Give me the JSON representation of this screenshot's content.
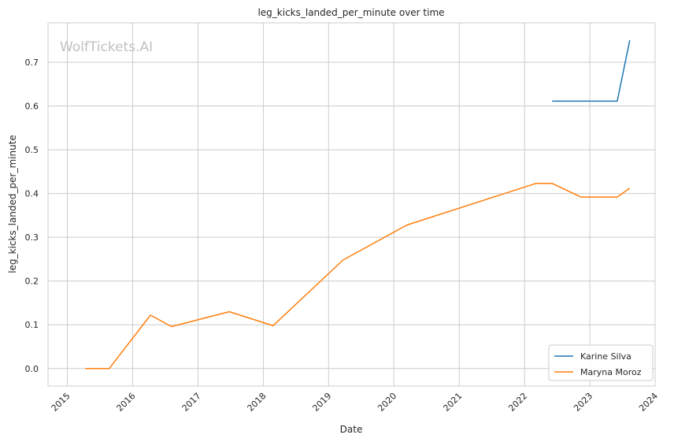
{
  "chart_data": {
    "type": "line",
    "title": "leg_kicks_landed_per_minute over time",
    "xlabel": "Date",
    "ylabel": "leg_kicks_landed_per_minute",
    "watermark": "WolfTickets.AI",
    "x_ticks": [
      "2015",
      "2016",
      "2017",
      "2018",
      "2019",
      "2020",
      "2021",
      "2022",
      "2023",
      "2024"
    ],
    "y_ticks": [
      "0.0",
      "0.1",
      "0.2",
      "0.3",
      "0.4",
      "0.5",
      "0.6",
      "0.7"
    ],
    "xlim": [
      "2014-09-15",
      "2024-01-01"
    ],
    "ylim": [
      -0.04,
      0.79
    ],
    "grid": true,
    "legend_position": "bottom-right",
    "series": [
      {
        "name": "Karine Silva",
        "color": "#1f77b4",
        "points": [
          [
            "2022-06-04",
            0.611
          ],
          [
            "2023-06-03",
            0.611
          ],
          [
            "2023-08-12",
            0.75
          ]
        ]
      },
      {
        "name": "Maryna Moroz",
        "color": "#ff7f0e",
        "points": [
          [
            "2015-04-11",
            0.0
          ],
          [
            "2015-08-23",
            0.0
          ],
          [
            "2016-04-10",
            0.122
          ],
          [
            "2016-08-06",
            0.096
          ],
          [
            "2017-06-25",
            0.13
          ],
          [
            "2018-02-24",
            0.098
          ],
          [
            "2019-03-23",
            0.248
          ],
          [
            "2020-03-14",
            0.328
          ],
          [
            "2022-03-05",
            0.423
          ],
          [
            "2022-06-04",
            0.423
          ],
          [
            "2022-11-12",
            0.392
          ],
          [
            "2023-06-03",
            0.392
          ],
          [
            "2023-08-12",
            0.412
          ]
        ]
      }
    ]
  }
}
